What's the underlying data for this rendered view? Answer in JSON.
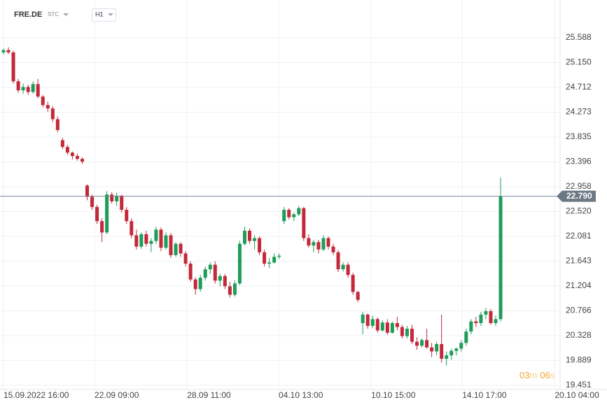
{
  "symbol": "FRE.DE",
  "instrument_kind": "STC",
  "interval": "H1",
  "countdown": {
    "minutes": "03",
    "minutes_unit": "m",
    "seconds": "06",
    "seconds_unit": "s"
  },
  "chart_data": {
    "type": "candlestick",
    "up_color": "#1e9c5a",
    "down_color": "#c4283a",
    "grid": true,
    "ylim": [
      19.377,
      26.255
    ],
    "yticks": [
      25.588,
      {
        "value": 25.15,
        "label": "25.150"
      },
      24.712,
      24.273,
      23.835,
      23.396,
      22.958,
      {
        "value": 22.52,
        "label": "22.520"
      },
      22.081,
      21.643,
      21.204,
      20.766,
      20.328,
      19.889,
      19.451
    ],
    "xlim": [
      0,
      112.5
    ],
    "xticks": [
      {
        "value": 0,
        "label": "15.09.2022 16:00"
      },
      {
        "value": 18.5,
        "label": "22.09 09:00"
      },
      {
        "value": 37.3,
        "label": "28.09 11:00"
      },
      {
        "value": 55.9,
        "label": "04.10 13:00"
      },
      {
        "value": 74.7,
        "label": "10.10 15:00"
      },
      {
        "value": 93.2,
        "label": "14.10 17:00"
      },
      {
        "value": 112,
        "label": "20.10 04:00"
      }
    ],
    "current_price": {
      "value": 22.79,
      "label": "22.790"
    },
    "ohlc": [
      [
        25.33,
        25.4,
        25.29,
        25.37
      ],
      [
        25.37,
        25.42,
        25.3,
        25.33
      ],
      [
        25.33,
        25.36,
        24.78,
        24.82
      ],
      [
        24.82,
        24.86,
        24.62,
        24.66
      ],
      [
        24.66,
        24.78,
        24.6,
        24.72
      ],
      [
        24.72,
        24.76,
        24.58,
        24.63
      ],
      [
        24.63,
        24.82,
        24.6,
        24.77
      ],
      [
        24.77,
        24.86,
        24.52,
        24.55
      ],
      [
        24.55,
        24.58,
        24.36,
        24.4
      ],
      [
        24.4,
        24.46,
        24.28,
        24.34
      ],
      [
        24.34,
        24.38,
        24.1,
        24.15
      ],
      [
        24.15,
        24.2,
        23.92,
        23.96
      ],
      [
        23.78,
        23.82,
        23.62,
        23.66
      ],
      [
        23.66,
        23.7,
        23.52,
        23.56
      ],
      [
        23.56,
        23.58,
        23.44,
        23.5
      ],
      [
        23.5,
        23.54,
        23.42,
        23.45
      ],
      [
        23.45,
        23.48,
        23.36,
        23.4
      ],
      [
        22.98,
        23.0,
        22.72,
        22.78
      ],
      [
        22.78,
        22.82,
        22.55,
        22.6
      ],
      [
        22.6,
        22.64,
        22.3,
        22.35
      ],
      [
        22.35,
        22.4,
        21.98,
        22.15
      ],
      [
        22.15,
        22.88,
        22.12,
        22.82
      ],
      [
        22.82,
        22.86,
        22.66,
        22.7
      ],
      [
        22.7,
        22.85,
        22.62,
        22.8
      ],
      [
        22.8,
        22.82,
        22.5,
        22.55
      ],
      [
        22.55,
        22.6,
        22.3,
        22.35
      ],
      [
        22.35,
        22.4,
        22.05,
        22.1
      ],
      [
        22.1,
        22.2,
        21.85,
        21.9
      ],
      [
        21.9,
        22.15,
        21.86,
        22.12
      ],
      [
        22.12,
        22.18,
        21.9,
        21.95
      ],
      [
        21.95,
        22.05,
        21.8,
        22.0
      ],
      [
        22.0,
        22.25,
        21.95,
        22.2
      ],
      [
        22.2,
        22.24,
        21.82,
        21.88
      ],
      [
        21.88,
        22.15,
        21.85,
        22.1
      ],
      [
        22.1,
        22.14,
        21.7,
        21.75
      ],
      [
        21.75,
        21.98,
        21.72,
        21.95
      ],
      [
        21.95,
        21.98,
        21.72,
        21.78
      ],
      [
        21.78,
        21.82,
        21.55,
        21.6
      ],
      [
        21.6,
        21.64,
        21.28,
        21.32
      ],
      [
        21.32,
        21.36,
        21.05,
        21.15
      ],
      [
        21.15,
        21.4,
        21.1,
        21.35
      ],
      [
        21.35,
        21.55,
        21.3,
        21.5
      ],
      [
        21.5,
        21.62,
        21.42,
        21.58
      ],
      [
        21.58,
        21.64,
        21.25,
        21.3
      ],
      [
        21.3,
        21.42,
        21.2,
        21.38
      ],
      [
        21.38,
        21.42,
        21.15,
        21.2
      ],
      [
        21.2,
        21.28,
        21.0,
        21.05
      ],
      [
        21.05,
        21.3,
        21.02,
        21.25
      ],
      [
        21.25,
        22.0,
        21.22,
        21.95
      ],
      [
        21.95,
        22.25,
        21.92,
        22.18
      ],
      [
        22.18,
        22.22,
        21.95,
        22.0
      ],
      [
        22.0,
        22.1,
        21.85,
        22.05
      ],
      [
        22.05,
        22.08,
        21.75,
        21.8
      ],
      [
        21.8,
        21.85,
        21.55,
        21.6
      ],
      [
        21.6,
        21.7,
        21.52,
        21.62
      ],
      [
        21.62,
        21.78,
        21.6,
        21.72
      ],
      [
        21.72,
        21.78,
        21.68,
        21.74
      ],
      [
        22.35,
        22.6,
        22.3,
        22.55
      ],
      [
        22.55,
        22.58,
        22.38,
        22.42
      ],
      [
        22.42,
        22.5,
        22.35,
        22.47
      ],
      [
        22.47,
        22.62,
        22.44,
        22.58
      ],
      [
        22.58,
        22.6,
        22.0,
        22.05
      ],
      [
        22.05,
        22.12,
        21.88,
        21.92
      ],
      [
        21.92,
        22.02,
        21.8,
        21.98
      ],
      [
        21.98,
        22.02,
        21.78,
        21.85
      ],
      [
        21.85,
        22.1,
        21.82,
        22.05
      ],
      [
        22.05,
        22.08,
        21.85,
        21.9
      ],
      [
        21.9,
        21.95,
        21.75,
        21.8
      ],
      [
        21.8,
        21.84,
        21.45,
        21.5
      ],
      [
        21.5,
        21.62,
        21.46,
        21.58
      ],
      [
        21.58,
        21.62,
        21.35,
        21.4
      ],
      [
        21.4,
        21.44,
        21.05,
        21.1
      ],
      [
        21.1,
        21.12,
        20.92,
        20.96
      ],
      [
        20.55,
        20.75,
        20.35,
        20.7
      ],
      [
        20.7,
        20.72,
        20.45,
        20.5
      ],
      [
        20.5,
        20.68,
        20.46,
        20.62
      ],
      [
        20.62,
        20.65,
        20.38,
        20.42
      ],
      [
        20.42,
        20.6,
        20.4,
        20.56
      ],
      [
        20.56,
        20.62,
        20.34,
        20.38
      ],
      [
        20.38,
        20.58,
        20.36,
        20.55
      ],
      [
        20.55,
        20.66,
        20.42,
        20.48
      ],
      [
        20.48,
        20.52,
        20.28,
        20.32
      ],
      [
        20.32,
        20.5,
        20.28,
        20.45
      ],
      [
        20.45,
        20.52,
        20.18,
        20.22
      ],
      [
        20.22,
        20.3,
        20.08,
        20.15
      ],
      [
        20.15,
        20.28,
        20.12,
        20.25
      ],
      [
        20.25,
        20.45,
        20.1,
        20.12
      ],
      [
        20.12,
        20.2,
        19.95,
        20.05
      ],
      [
        20.05,
        20.22,
        19.98,
        20.18
      ],
      [
        20.18,
        20.7,
        19.85,
        19.92
      ],
      [
        19.92,
        20.05,
        19.8,
        19.98
      ],
      [
        19.98,
        20.1,
        19.9,
        20.06
      ],
      [
        20.06,
        20.12,
        19.98,
        20.1
      ],
      [
        20.1,
        20.25,
        20.05,
        20.2
      ],
      [
        20.2,
        20.45,
        20.15,
        20.4
      ],
      [
        20.4,
        20.62,
        20.35,
        20.58
      ],
      [
        20.58,
        20.66,
        20.48,
        20.55
      ],
      [
        20.55,
        20.75,
        20.5,
        20.7
      ],
      [
        20.7,
        20.82,
        20.62,
        20.76
      ],
      [
        20.76,
        20.8,
        20.52,
        20.55
      ],
      [
        20.55,
        20.68,
        20.5,
        20.62
      ],
      [
        20.62,
        23.12,
        20.58,
        22.79
      ]
    ]
  }
}
